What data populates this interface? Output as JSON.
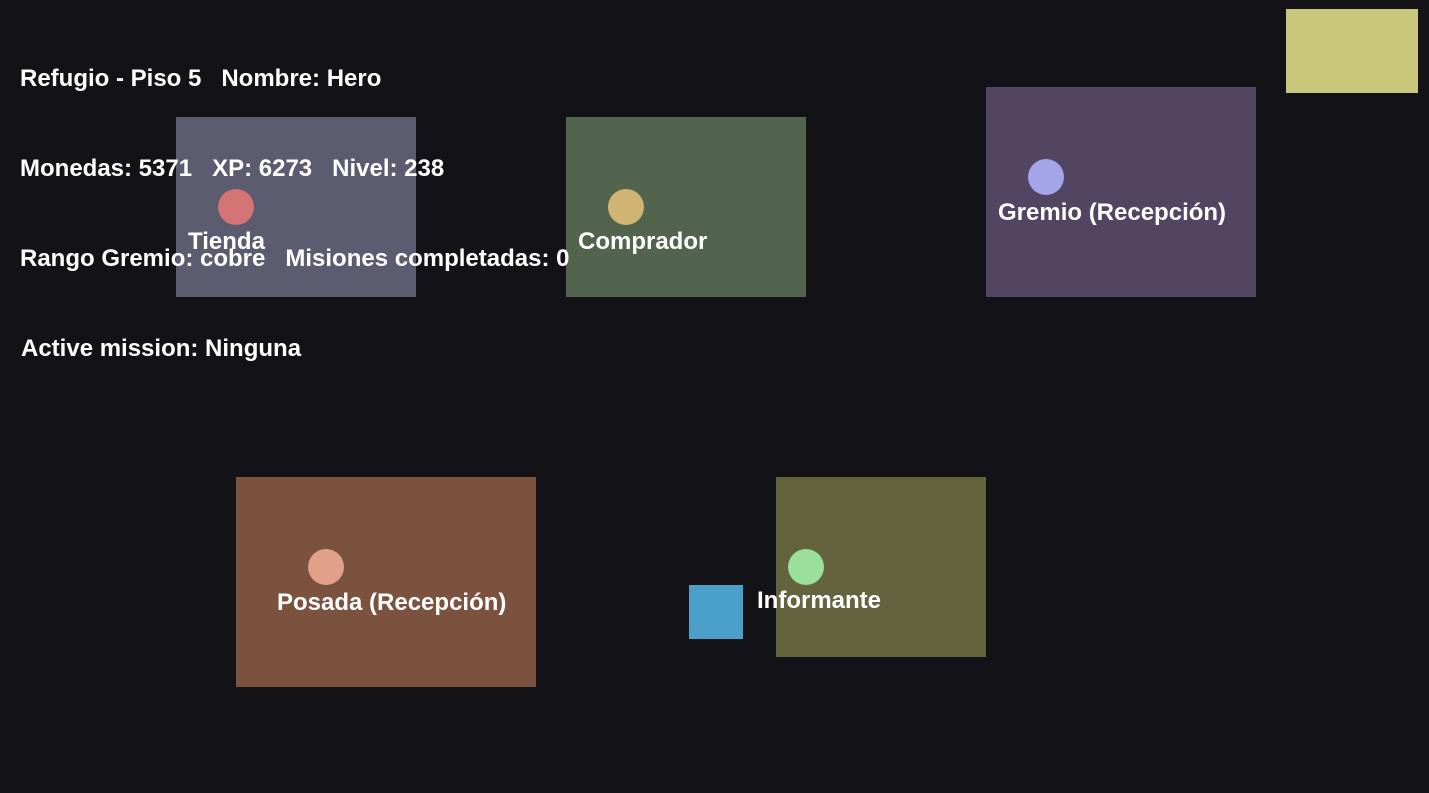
{
  "hud": {
    "line1": "Refugio - Piso 5   Nombre: Hero",
    "line2": "Monedas: 5371   XP: 6273   Nivel: 238",
    "line3": "Rango Gremio: cobre   Misiones completadas: 0",
    "line4": "Active mission: Ninguna"
  },
  "rooms": [
    {
      "name": "Tienda",
      "room_color": "#5b5c6f",
      "npc_color": "#d47474"
    },
    {
      "name": "Comprador",
      "room_color": "#52644e",
      "npc_color": "#d0b474"
    },
    {
      "name": "Gremio (Recepción)",
      "room_color": "#514562",
      "npc_color": "#a4a4e8"
    },
    {
      "name": "Posada (Recepción)",
      "room_color": "#7b523e",
      "npc_color": "#e0a08a"
    },
    {
      "name": "Informante",
      "room_color": "#63643d",
      "npc_color": "#9adf9a"
    }
  ],
  "player_color": "#4ba0cb",
  "minimap_color": "#c9c77a"
}
